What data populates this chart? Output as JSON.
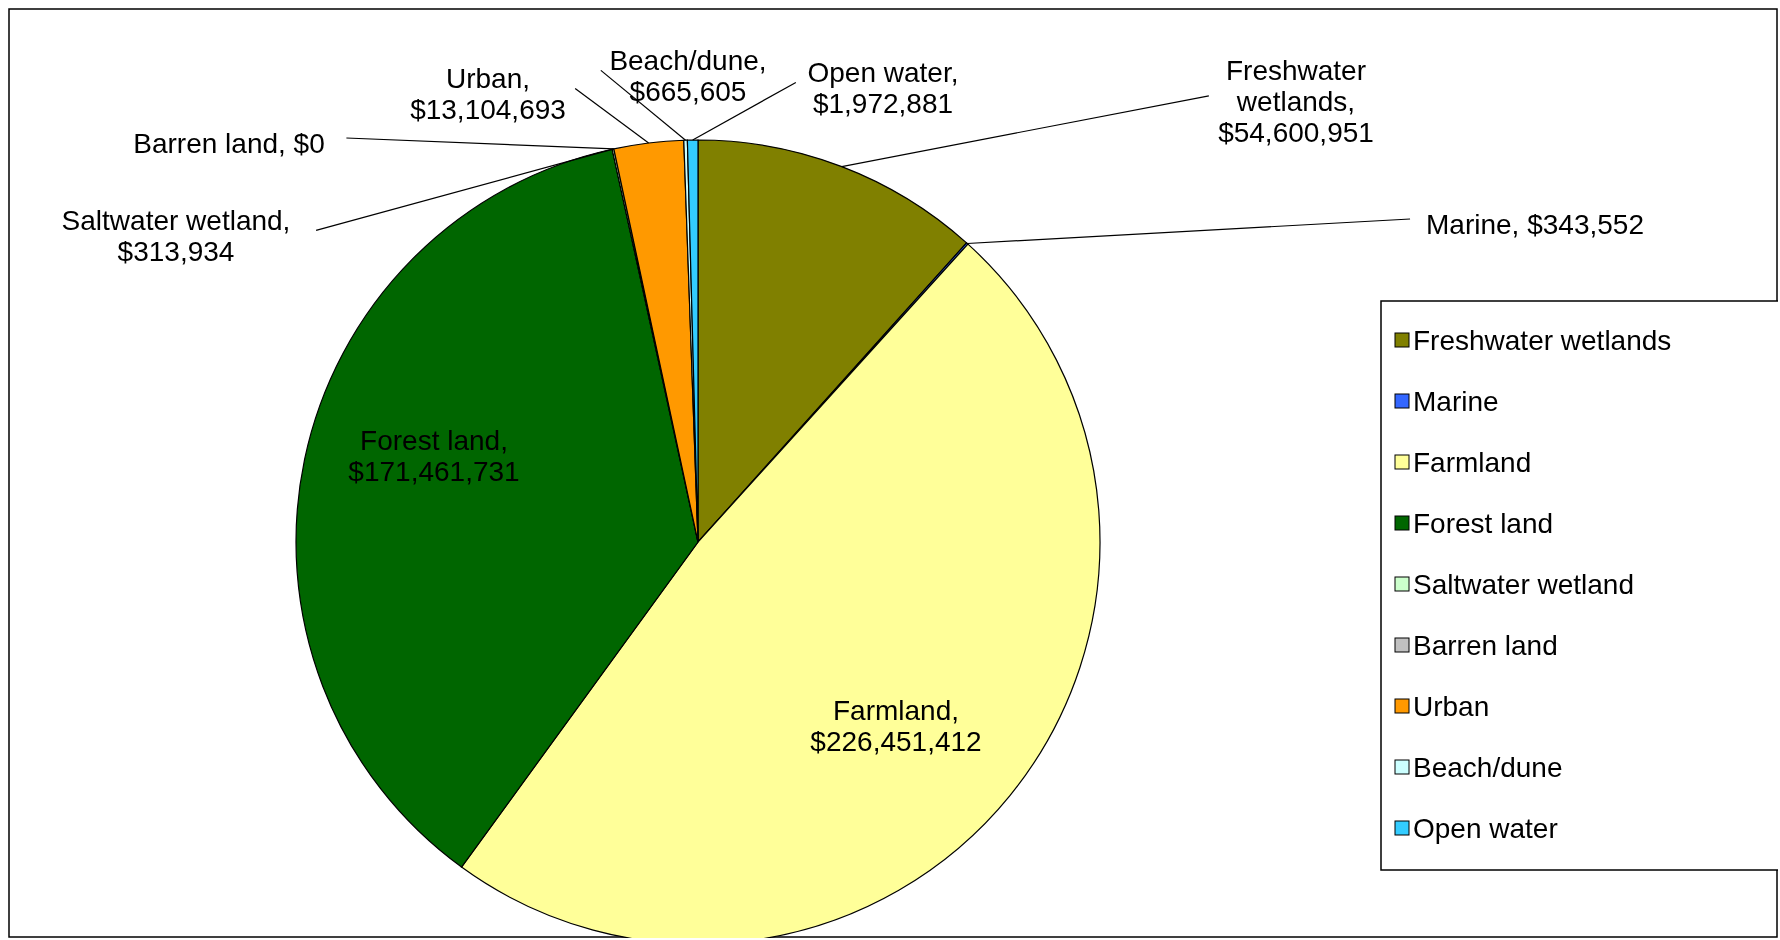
{
  "chart_data": {
    "type": "pie",
    "categories": [
      "Freshwater wetlands",
      "Marine",
      "Farmland",
      "Forest land",
      "Saltwater wetland",
      "Barren land",
      "Urban",
      "Beach/dune",
      "Open water"
    ],
    "values": [
      54600951,
      343552,
      226451412,
      171461731,
      313934,
      0,
      13104693,
      665605,
      1972881
    ],
    "colors": [
      "#808000",
      "#3366ff",
      "#ffff99",
      "#006600",
      "#ccffcc",
      "#c0c0c0",
      "#ff9900",
      "#ccffff",
      "#33ccff"
    ],
    "value_labels": [
      "Freshwater wetlands, $54,600,951",
      "Marine, $343,552",
      "Farmland, $226,451,412",
      "Forest land, $171,461,731",
      "Saltwater wetland, $313,934",
      "Barren land, $0",
      "Urban, $13,104,693",
      "Beach/dune, $665,605",
      "Open water, $1,972,881"
    ],
    "legend": "right"
  }
}
